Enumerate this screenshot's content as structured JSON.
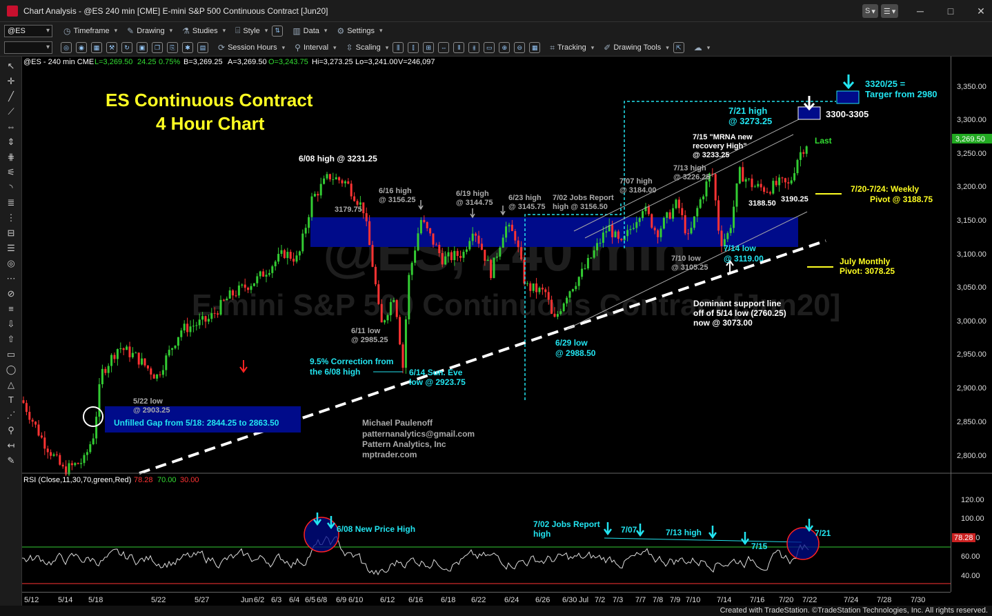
{
  "window": {
    "title": "Chart Analysis - @ES 240 min [CME] E-mini S&P 500 Continuous Contract [Jun20]",
    "controls": [
      "S",
      "▾",
      "☰",
      "▾"
    ],
    "minimize": "─",
    "maximize": "□",
    "close": "✕"
  },
  "toolbar1": {
    "symbol": "@ES",
    "items": [
      {
        "label": "Timeframe",
        "icon": "clock-icon"
      },
      {
        "label": "Drawing",
        "icon": "pencil-icon"
      },
      {
        "label": "Studies",
        "icon": "flask-icon"
      },
      {
        "label": "Style",
        "icon": "brackets-icon"
      },
      {
        "label": "Data",
        "icon": "bars-icon"
      },
      {
        "label": "Settings",
        "icon": "gear-icon"
      }
    ]
  },
  "toolbar2": {
    "items": [
      {
        "label": "Session Hours",
        "icon": "session-icon"
      },
      {
        "label": "Interval",
        "icon": "pin-icon"
      },
      {
        "label": "Scaling",
        "icon": "scale-icon"
      },
      {
        "label": "Tracking",
        "icon": "grid-icon"
      },
      {
        "label": "Drawing Tools",
        "icon": "drawing-tools-icon"
      }
    ]
  },
  "chart_header": {
    "symbol_line": "@ES - 240 min  CME",
    "last": "L=3,269.50",
    "change": "24.25",
    "pct": "0.75%",
    "bid": "B=3,269.25",
    "ask": "A=3,269.50",
    "open": "O=3,243.75",
    "high": "Hi=3,273.25",
    "low": "Lo=3,241.00",
    "volume": "V=246,097"
  },
  "watermark": {
    "line1": "@ES, 240 min",
    "line2": "E-mini S&P 500 Continuous Contract [Jun20]"
  },
  "annotations": {
    "title1": "ES Continuous Contract",
    "title2": "4 Hour Chart",
    "jun08_high": "6/08 high @ 3231.25",
    "v3179": "3179.75",
    "jun16_a": "6/16 high",
    "jun16_b": "@ 3156.25",
    "jun19_a": "6/19 high",
    "jun19_b": "@ 3144.75",
    "jun23_a": "6/23 high",
    "jun23_b": "@ 3145.75",
    "jul02_a": "7/02 Jobs Report",
    "jul02_b": "high @ 3156.50",
    "jul07_a": "7/07 high",
    "jul07_b": "@ 3184.00",
    "jul13_a": "7/13 high",
    "jul13_b": "@ 3226.25",
    "jul15_a": "7/15 \"MRNA new",
    "jul15_b": "recovery High\"",
    "jul15_c": "@ 3233.25",
    "jul21_a": "7/21 high",
    "jul21_b": "@ 3273.25",
    "target_a": "3320/25 =",
    "target_b": "Targer from 2980",
    "r3300": "3300-3305",
    "last": "Last",
    "weekly_a": "7/20-7/24: Weekly",
    "weekly_b": "Pivot @ 3188.75",
    "v3188": "3188.50",
    "v3190": "3190.25",
    "monthly_a": "July Monthly",
    "monthly_b": "Pivot: 3078.25",
    "jul14_a": "7/14 low",
    "jul14_b": "@ 3119.00",
    "jul10_a": "7/10 low",
    "jul10_b": "@ 3105.25",
    "support_a": "Dominant support line",
    "support_b": "off of 5/14 low (2760.25)",
    "support_c": "now @ 3073.00",
    "jun29_a": "6/29 low",
    "jun29_b": "@ 2988.50",
    "jun11_a": "6/11 low",
    "jun11_b": "@ 2985.25",
    "corr_a": "9.5% Correction from",
    "corr_b": "the 6/08 high",
    "jun14_a": "6/14 Sun. Eve",
    "jun14_b": "low @ 2923.75",
    "may22_a": "5/22 low",
    "may22_b": "@ 2903.25",
    "gap": "Unfilled Gap from 5/18: 2844.25 to 2863.50",
    "author1": "Michael Paulenoff",
    "author2": "patternanalytics@gmail.com",
    "author3": "Pattern Analytics, Inc",
    "author4": "mptrader.com"
  },
  "rsi": {
    "label": "RSI (Close,11,30,70,green,Red)",
    "v1": "78.28",
    "v2": "70.00",
    "v3": "30.00",
    "ann_jun08": "6/08 New Price High",
    "ann_jul02_a": "7/02 Jobs Report",
    "ann_jul02_b": "high",
    "ann_jul07": "7/07",
    "ann_jul13": "7/13 high",
    "ann_jul15": "7/15",
    "ann_jul21": "7/21",
    "axis": [
      "120.00",
      "100.00",
      "80.00",
      "60.00",
      "40.00"
    ],
    "last_tag": "78.28"
  },
  "price_axis": [
    "3,350.00",
    "3,300.00",
    "3,250.00",
    "3,200.00",
    "3,150.00",
    "3,100.00",
    "3,050.00",
    "3,000.00",
    "2,950.00",
    "2,900.00",
    "2,850.00",
    "2,800.00"
  ],
  "last_price_tag": "3,269.50",
  "date_axis": [
    "5/12",
    "5/14",
    "5/18",
    "5/22",
    "5/27",
    "Jun",
    "6/2",
    "6/3",
    "6/4",
    "6/5",
    "6/8",
    "6/9",
    "6/10",
    "6/12",
    "6/16",
    "6/18",
    "6/22",
    "6/24",
    "6/26",
    "6/30",
    "Jul",
    "7/2",
    "7/3",
    "7/7",
    "7/8",
    "7/9",
    "7/10",
    "7/14",
    "7/16",
    "7/20",
    "7/22",
    "7/24",
    "7/28",
    "7/30"
  ],
  "footer": "Created with TradeStation. ©TradeStation Technologies, Inc. All rights reserved.",
  "colors": {
    "up": "#33cc33",
    "down": "#ff3333",
    "zone": "#000b8a",
    "cyan": "#22e4f0",
    "yellow": "#ffff22"
  }
}
